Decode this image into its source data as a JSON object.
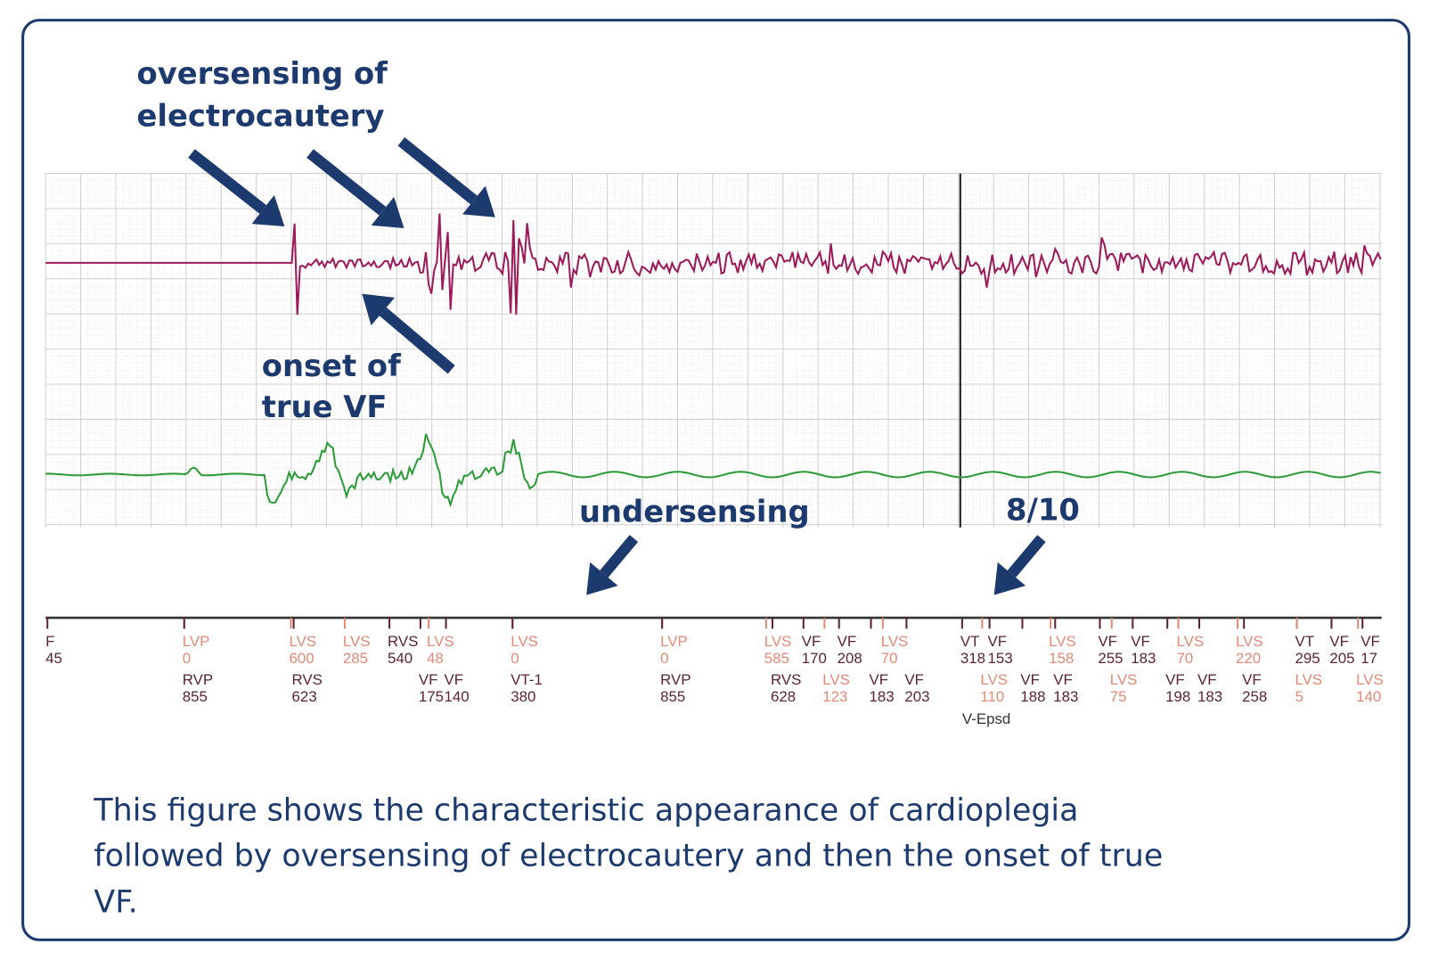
{
  "annotations": {
    "oversensing": [
      "oversensing of",
      "electrocautery"
    ],
    "onset": [
      "onset of",
      "true VF"
    ],
    "undersensing": "undersensing",
    "ratio": "8/10"
  },
  "markers": {
    "top": [
      {
        "label": "F",
        "value": "45"
      },
      {
        "label": "LVP",
        "value": "0"
      },
      {
        "label": "LVS",
        "value": "600"
      },
      {
        "label": "LVS",
        "value": "285"
      },
      {
        "label": "RVS",
        "value": "540"
      },
      {
        "label": "LVS",
        "value": "48"
      },
      {
        "label": "LVS",
        "value": "0"
      },
      {
        "label": "LVP",
        "value": "0"
      },
      {
        "label": "LVS",
        "value": "585"
      },
      {
        "label": "VF",
        "value": "170"
      },
      {
        "label": "VF",
        "value": "208"
      },
      {
        "label": "LVS",
        "value": "70"
      },
      {
        "label": "VT",
        "value": "318"
      },
      {
        "label": "VF",
        "value": "153"
      },
      {
        "label": "LVS",
        "value": "158"
      },
      {
        "label": "VF",
        "value": "255"
      },
      {
        "label": "VF",
        "value": "183"
      },
      {
        "label": "LVS",
        "value": "70"
      },
      {
        "label": "LVS",
        "value": "220"
      },
      {
        "label": "VT",
        "value": "295"
      },
      {
        "label": "VF",
        "value": "205"
      },
      {
        "label": "VF",
        "value": "17"
      }
    ],
    "bottom": [
      {
        "label": "RVP",
        "value": "855"
      },
      {
        "label": "RVS",
        "value": "623"
      },
      {
        "label": "VF",
        "value": "175"
      },
      {
        "label": "VF",
        "value": "140"
      },
      {
        "label": "VT-1",
        "value": "380"
      },
      {
        "label": "RVP",
        "value": "855"
      },
      {
        "label": "RVS",
        "value": "628"
      },
      {
        "label": "LVS",
        "value": "123"
      },
      {
        "label": "VF",
        "value": "183"
      },
      {
        "label": "VF",
        "value": "203"
      },
      {
        "label": "LVS",
        "value": "110"
      },
      {
        "label": "VF",
        "value": "188"
      },
      {
        "label": "VF",
        "value": "183"
      },
      {
        "label": "LVS",
        "value": "75"
      },
      {
        "label": "VF",
        "value": "198"
      },
      {
        "label": "VF",
        "value": "183"
      },
      {
        "label": "VF",
        "value": "258"
      },
      {
        "label": "LVS",
        "value": "5"
      },
      {
        "label": "LVS",
        "value": "140"
      }
    ],
    "episode": "V-Epsd"
  },
  "caption": [
    "This figure shows the characteristic appearance of cardioplegia",
    "followed by oversensing of electrocautery and then the onset of true",
    "VF."
  ]
}
